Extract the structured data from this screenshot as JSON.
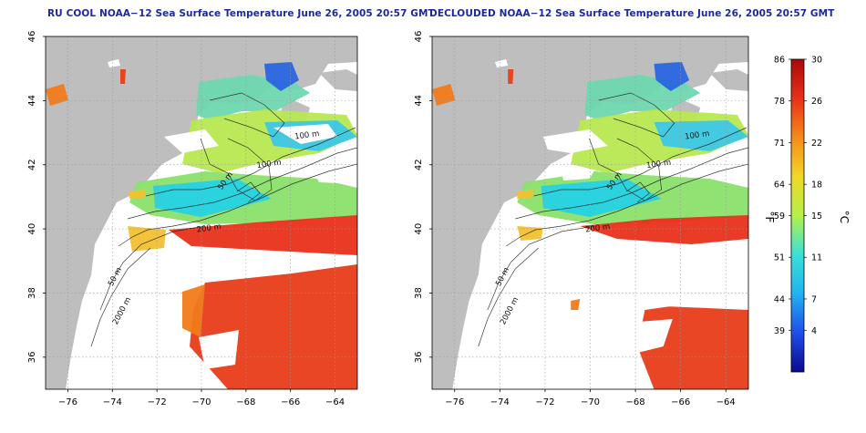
{
  "panels": [
    {
      "id": "left",
      "title": "RU COOL NOAA−12 Sea Surface Temperature June 26, 2005 20:57 GMT",
      "declouded": false
    },
    {
      "id": "right",
      "title": "DECLOUDED NOAA−12 Sea Surface Temperature June 26, 2005 20:57 GMT",
      "declouded": true
    }
  ],
  "axes": {
    "x_ticks": [
      "−76",
      "−74",
      "−72",
      "−70",
      "−68",
      "−66",
      "−64"
    ],
    "x_values": [
      -76,
      -74,
      -72,
      -70,
      -68,
      -66,
      -64
    ],
    "xlim": [
      -77,
      -63
    ],
    "y_ticks": [
      "46",
      "44",
      "42",
      "40",
      "38",
      "36"
    ],
    "y_values": [
      46,
      44,
      42,
      40,
      38,
      36
    ],
    "ylim": [
      35,
      46
    ],
    "grid": "dotted"
  },
  "contour_labels": [
    {
      "text": "100 m",
      "lon": -65.8,
      "lat": 42.8
    },
    {
      "text": "100 m",
      "lon": -67.5,
      "lat": 41.9
    },
    {
      "text": "50 m",
      "lon": -69.1,
      "lat": 41.2
    },
    {
      "text": "200 m",
      "lon": -70.2,
      "lat": 39.9
    },
    {
      "text": "50 m",
      "lon": -74.0,
      "lat": 38.2
    },
    {
      "text": "2000 m",
      "lon": -73.8,
      "lat": 37.0
    }
  ],
  "colorbar": {
    "fahrenheit_ticks": [
      "86",
      "78",
      "71",
      "64",
      "59",
      "51",
      "44",
      "39"
    ],
    "celsius_ticks": [
      "30",
      "26",
      "22",
      "18",
      "15",
      "11",
      "7",
      "4"
    ],
    "celsius_values": [
      30,
      26,
      22,
      18,
      15,
      11,
      7,
      4
    ],
    "range_c": [
      0,
      30
    ],
    "unit_f": "°F",
    "unit_c": "°C",
    "colors": [
      "#0a0a8c",
      "#1f4ee8",
      "#22b2f0",
      "#3be0d8",
      "#b4f04a",
      "#f0d828",
      "#f58a1a",
      "#e8301a",
      "#a80a0a"
    ]
  },
  "colors": {
    "land": "#bebebe",
    "title": "#1a2a9c",
    "contour": "#1a1a1a"
  }
}
